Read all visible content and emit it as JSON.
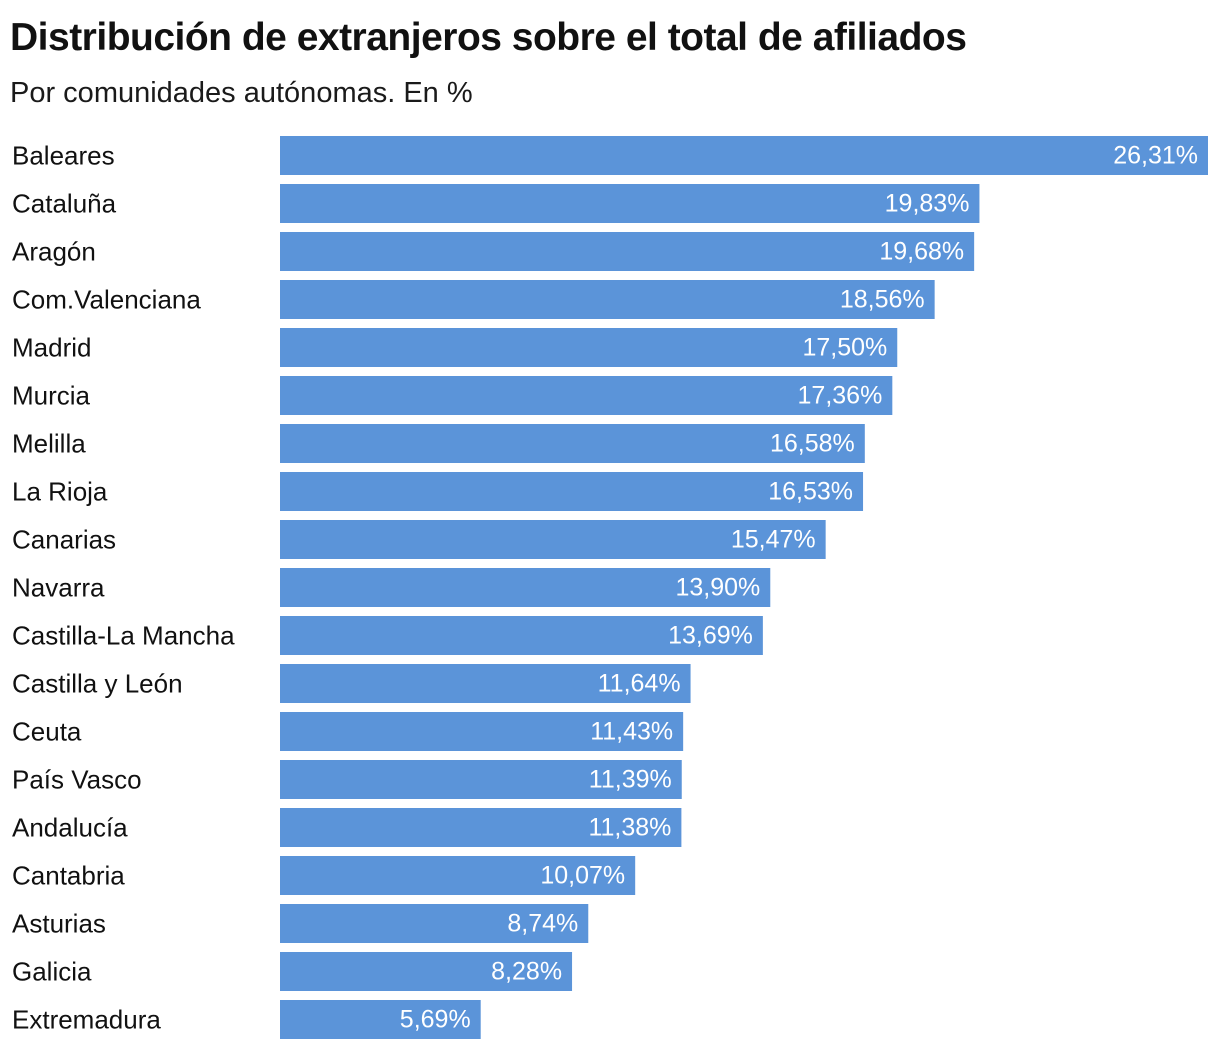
{
  "title": "Distribución de extranjeros sobre el total de afiliados",
  "subtitle": "Por comunidades autónomas. En %",
  "colors": {
    "bar": "#5b94d9",
    "value_text": "#ffffff",
    "label_text": "#111111"
  },
  "chart_data": {
    "type": "bar",
    "orientation": "horizontal",
    "title": "Distribución de extranjeros sobre el total de afiliados",
    "subtitle": "Por comunidades autónomas. En %",
    "grid": false,
    "categories": [
      "Baleares",
      "Cataluña",
      "Aragón",
      "Com.Valenciana",
      "Madrid",
      "Murcia",
      "Melilla",
      "La Rioja",
      "Canarias",
      "Navarra",
      "Castilla-La Mancha",
      "Castilla y León",
      "Ceuta",
      "País Vasco",
      "Andalucía",
      "Cantabria",
      "Asturias",
      "Galicia",
      "Extremadura"
    ],
    "values": [
      26.31,
      19.83,
      19.68,
      18.56,
      17.5,
      17.36,
      16.58,
      16.53,
      15.47,
      13.9,
      13.69,
      11.64,
      11.43,
      11.39,
      11.38,
      10.07,
      8.74,
      8.28,
      5.69
    ],
    "data_labels": [
      "26,31%",
      "19,83%",
      "19,68%",
      "18,56%",
      "17,50%",
      "17,36%",
      "16,58%",
      "16,53%",
      "15,47%",
      "13,90%",
      "13,69%",
      "11,64%",
      "11,43%",
      "11,39%",
      "11,38%",
      "10,07%",
      "8,74%",
      "8,28%",
      "5,69%"
    ],
    "xlim": [
      0,
      26.31
    ]
  }
}
